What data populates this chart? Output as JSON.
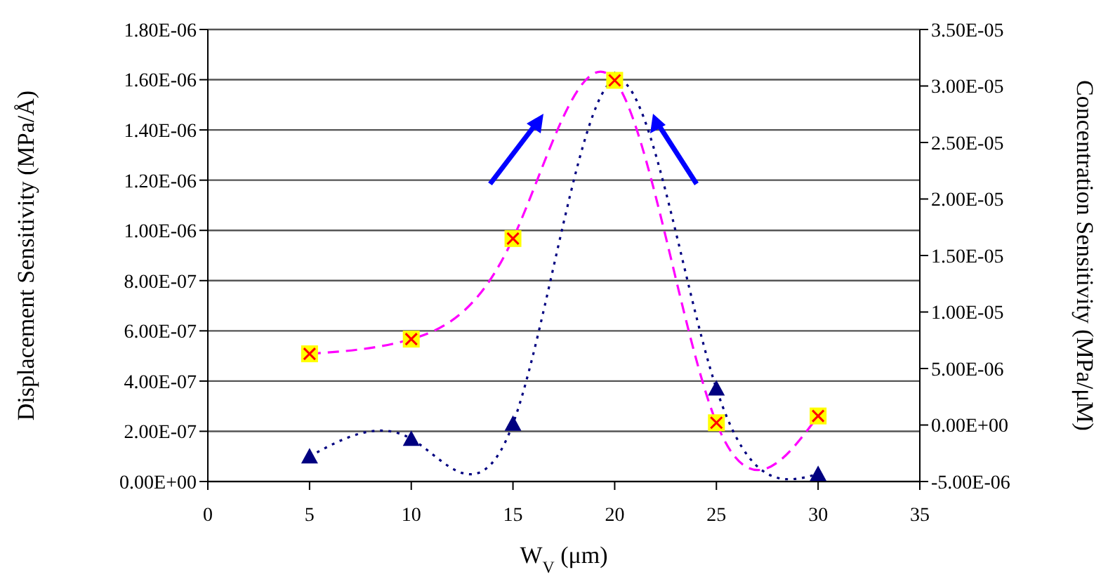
{
  "chart_data": {
    "type": "line",
    "xlabel": "W$_{V}$ (μm)",
    "ylabel": "Displacement Sensitivity (MPa/Å)",
    "y2label": "Concentration Sensitivity (MPa/μM)",
    "x": [
      5,
      10,
      15,
      20,
      25,
      30
    ],
    "series": [
      {
        "color": "#000080",
        "marker": "triangle",
        "line_style": "dotted",
        "values": [
          1e-07,
          1.7e-07,
          2.3e-07,
          1.6e-06,
          3.7e-07,
          3e-08
        ]
      },
      {
        "color": "#ff00ff",
        "marker": "square",
        "line_style": "dashed",
        "axis": "y2",
        "values": [
          6.3e-06,
          7.6e-06,
          1.65e-05,
          3.05e-05,
          2e-07,
          8e-07
        ]
      }
    ],
    "xlim": [
      0,
      35
    ],
    "xticks": [
      0,
      5,
      10,
      15,
      20,
      25,
      30,
      35
    ],
    "ylim": [
      0,
      1.8e-06
    ],
    "yticks": [
      {
        "value": 0,
        "label": "0.00E+00"
      },
      {
        "value": 2e-07,
        "label": "2.00E-07"
      },
      {
        "value": 4e-07,
        "label": "4.00E-07"
      },
      {
        "value": 6e-07,
        "label": "6.00E-07"
      },
      {
        "value": 8e-07,
        "label": "8.00E-07"
      },
      {
        "value": 1e-06,
        "label": "1.00E-06"
      },
      {
        "value": 1.2e-06,
        "label": "1.20E-06"
      },
      {
        "value": 1.4e-06,
        "label": "1.40E-06"
      },
      {
        "value": 1.6e-06,
        "label": "1.60E-06"
      },
      {
        "value": 1.8e-06,
        "label": "1.80E-06"
      }
    ],
    "y2lim": [
      -5e-06,
      3.5e-05
    ],
    "y2ticks": [
      {
        "value": -5e-06,
        "label": "-5.00E-06"
      },
      {
        "value": 0,
        "label": "0.00E+00"
      },
      {
        "value": 5e-06,
        "label": "5.00E-06"
      },
      {
        "value": 1e-05,
        "label": "1.00E-05"
      },
      {
        "value": 1.5e-05,
        "label": "1.50E-05"
      },
      {
        "value": 2e-05,
        "label": "2.00E-05"
      },
      {
        "value": 2.5e-05,
        "label": "2.50E-05"
      },
      {
        "value": 3e-05,
        "label": "3.00E-05"
      },
      {
        "value": 3.5e-05,
        "label": "3.50E-05"
      }
    ],
    "grid": "y"
  }
}
